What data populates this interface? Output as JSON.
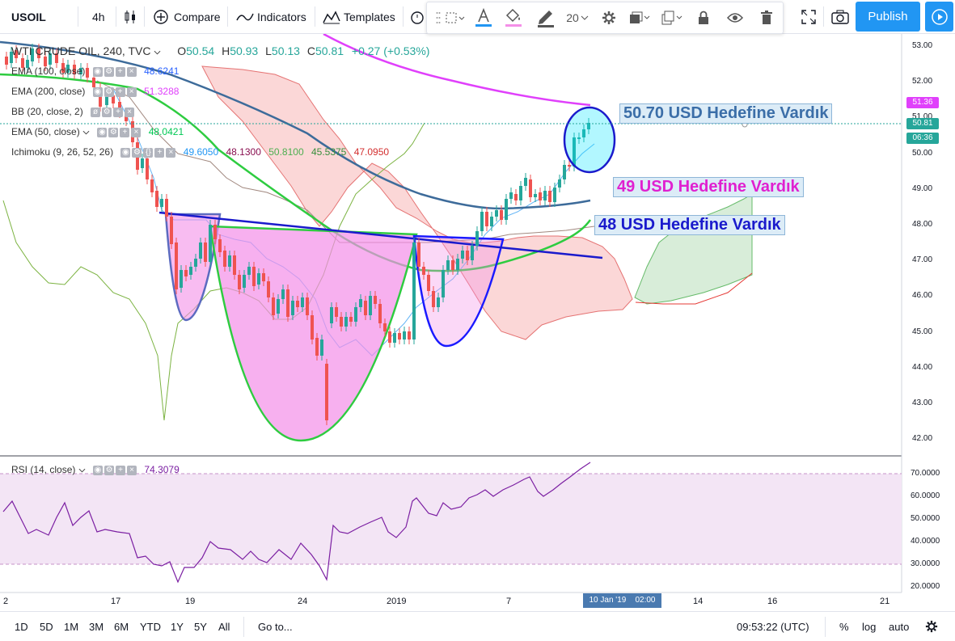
{
  "toolbar": {
    "symbol": "USOIL",
    "interval": "4h",
    "compare": "Compare",
    "indicators": "Indicators",
    "templates": "Templates",
    "publish": "Publish"
  },
  "drawing_toolbar": {
    "font_size": "20"
  },
  "chart_header": {
    "title": "WTI CRUDE OIL, 240, TVC",
    "open_label": "O",
    "open": "50.54",
    "high_label": "H",
    "high": "50.93",
    "low_label": "L",
    "low": "50.13",
    "close_label": "C",
    "close": "50.81",
    "change": "+0.27 (+0.53%)"
  },
  "indicators": [
    {
      "name": "EMA (100, close)",
      "value": "48.6241",
      "color": "#2962ff"
    },
    {
      "name": "EMA (200, close)",
      "value": "51.3288",
      "color": "#e040fb"
    },
    {
      "name": "BB (20, close, 2)",
      "value": "",
      "color": "#2196f3"
    },
    {
      "name": "EMA (50, close)",
      "value": "48.0421",
      "color": "#00c853"
    },
    {
      "name": "Ichimoku (9, 26, 52, 26)",
      "values": [
        "49.6050",
        "48.1300",
        "50.8100",
        "45.5375",
        "47.0950"
      ],
      "colors": [
        "#2196f3",
        "#880e4f",
        "#4caf50",
        "#388e3c",
        "#d32f2f"
      ]
    }
  ],
  "price_axis": [
    "53.00",
    "52.00",
    "51.00",
    "50.00",
    "49.00",
    "48.00",
    "47.00",
    "46.00",
    "45.00",
    "44.00",
    "43.00",
    "42.00"
  ],
  "price_tags": {
    "ema200": "51.36",
    "last": "50.81",
    "countdown": "06:36"
  },
  "rsi": {
    "name": "RSI (14, close)",
    "value": "74.3079",
    "axis": [
      "70.0000",
      "60.0000",
      "50.0000",
      "40.0000",
      "30.0000",
      "20.0000"
    ]
  },
  "time_axis": [
    "2",
    "17",
    "19",
    "24",
    "2019",
    "7",
    "14",
    "16",
    "21"
  ],
  "time_cursor": "10 Jan '19    02:00",
  "annotations": {
    "target_1": "50.70 USD Hedefine Vardık",
    "target_2": "49 USD Hedefine Vardık",
    "target_3": "48 USD Hedefine Vardık"
  },
  "bottombar": {
    "ranges": [
      "1D",
      "5D",
      "1M",
      "3M",
      "6M",
      "YTD",
      "1Y",
      "5Y",
      "All"
    ],
    "goto": "Go to...",
    "time": "09:53:22 (UTC)",
    "percent": "%",
    "log": "log",
    "auto": "auto"
  },
  "colors": {
    "up": "#26a69a",
    "down": "#ef5350",
    "accent": "#2196f3",
    "pattern_fill": "#f48fe8",
    "rsi_line": "#7b1fa2",
    "rsi_band": "#f3e5f5"
  }
}
